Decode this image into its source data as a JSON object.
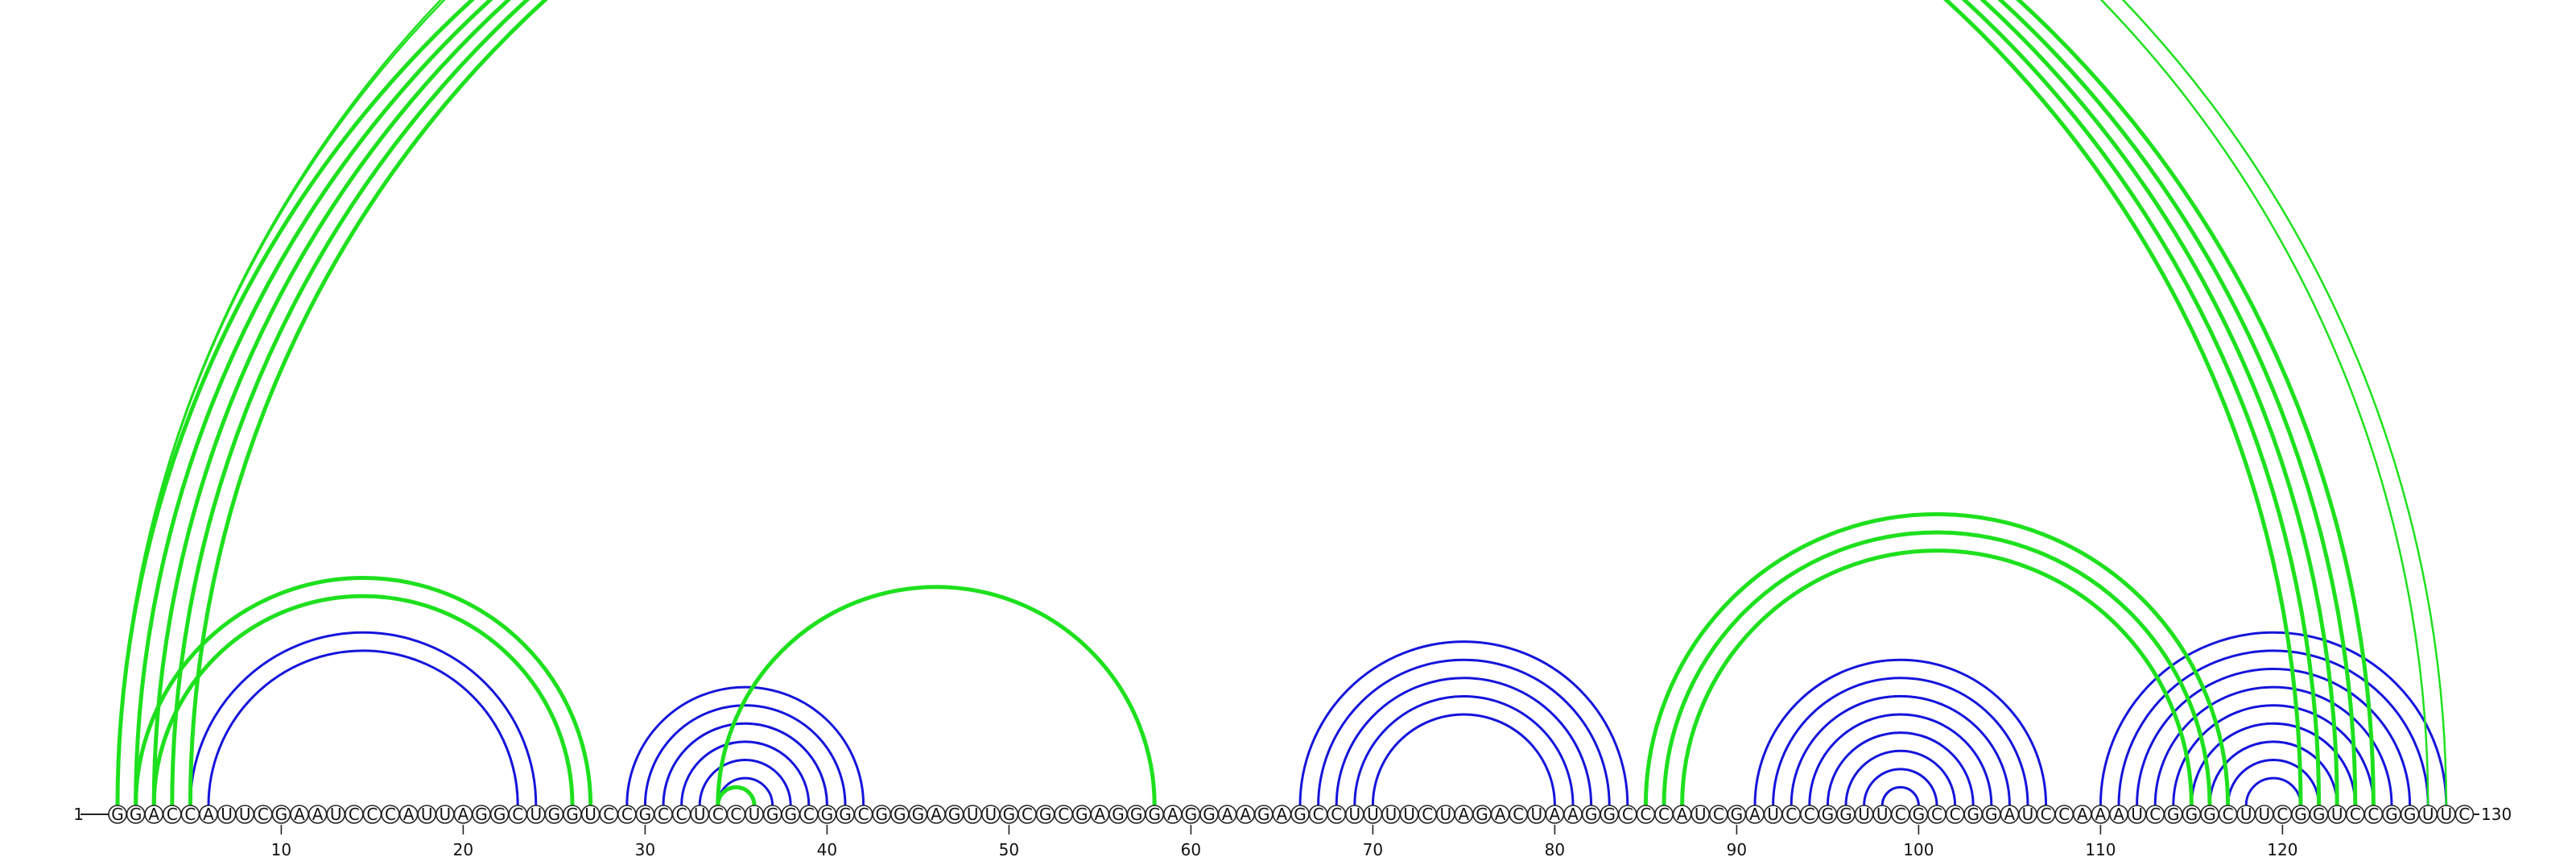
{
  "sequence": "GGACCAUUCGAAUCCCAUUAGGCUGGUCCGCCUCCUGGCGGCGGGAGUUGCGCGAGGGAGGAAGAGCCUUUUCUAGACUAAGGCCCAUCGAUCCGGUUCGCCGGAUCCAAAUCGGGCUUCGGUCCGGUUC",
  "start_label": "1",
  "end_label": "130",
  "tick_labels": [
    "10",
    "20",
    "30",
    "40",
    "50",
    "60",
    "70",
    "80",
    "90",
    "100",
    "110",
    "120"
  ],
  "colors": {
    "green": "#1ee01e",
    "blue": "#1414dc",
    "backbone": "#222222"
  },
  "green_arcs": [
    {
      "i": 1,
      "j": 121
    },
    {
      "i": 2,
      "j": 122
    },
    {
      "i": 3,
      "j": 123
    },
    {
      "i": 4,
      "j": 124
    },
    {
      "i": 5,
      "j": 125
    },
    {
      "i": 2,
      "j": 27
    },
    {
      "i": 3,
      "j": 26
    },
    {
      "i": 34,
      "j": 58
    },
    {
      "i": 85,
      "j": 117
    },
    {
      "i": 86,
      "j": 116
    },
    {
      "i": 87,
      "j": 115
    },
    {
      "i": 34,
      "j": 36
    },
    {
      "i": 1,
      "j": 129,
      "thin": true
    },
    {
      "i": 1,
      "j": 128,
      "thin": true
    }
  ],
  "blue_arcs": [
    {
      "i": 5,
      "j": 24
    },
    {
      "i": 6,
      "j": 23
    },
    {
      "i": 29,
      "j": 42
    },
    {
      "i": 30,
      "j": 41
    },
    {
      "i": 31,
      "j": 40
    },
    {
      "i": 32,
      "j": 39
    },
    {
      "i": 33,
      "j": 38
    },
    {
      "i": 34,
      "j": 37
    },
    {
      "i": 66,
      "j": 84
    },
    {
      "i": 67,
      "j": 83
    },
    {
      "i": 68,
      "j": 82
    },
    {
      "i": 69,
      "j": 81
    },
    {
      "i": 70,
      "j": 80
    },
    {
      "i": 91,
      "j": 107
    },
    {
      "i": 92,
      "j": 106
    },
    {
      "i": 93,
      "j": 105
    },
    {
      "i": 94,
      "j": 104
    },
    {
      "i": 95,
      "j": 103
    },
    {
      "i": 96,
      "j": 102
    },
    {
      "i": 97,
      "j": 101
    },
    {
      "i": 98,
      "j": 100
    },
    {
      "i": 110,
      "j": 129
    },
    {
      "i": 111,
      "j": 128
    },
    {
      "i": 112,
      "j": 127
    },
    {
      "i": 113,
      "j": 126
    },
    {
      "i": 114,
      "j": 125
    },
    {
      "i": 115,
      "j": 124
    },
    {
      "i": 116,
      "j": 123
    },
    {
      "i": 117,
      "j": 122
    },
    {
      "i": 118,
      "j": 121
    }
  ]
}
